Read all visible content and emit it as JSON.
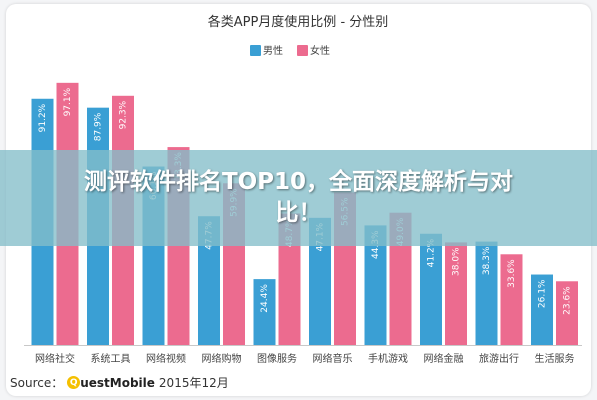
{
  "banner": {
    "title": "测评软件排名TOP10，全面深度解析与对比！"
  },
  "source": {
    "label": "Source：",
    "logo_text": "uestMobile",
    "date": "2015年12月"
  },
  "chart_data": {
    "type": "bar",
    "title": "各类APP月度使用比例 - 分性别",
    "legend_position": "top-center",
    "categories": [
      "网络社交",
      "系统工具",
      "网络视频",
      "网络购物",
      "图像服务",
      "网络音乐",
      "手机游戏",
      "网络金融",
      "旅游出行",
      "生活服务"
    ],
    "series": [
      {
        "name": "男性",
        "color": "#3a9fd4",
        "values": [
          91.2,
          87.9,
          66.1,
          47.7,
          24.4,
          47.1,
          44.3,
          41.2,
          38.3,
          26.1
        ]
      },
      {
        "name": "女性",
        "color": "#ec6b8f",
        "values": [
          97.1,
          92.3,
          73.3,
          59.9,
          48.7,
          56.5,
          49.0,
          38.0,
          33.6,
          23.6
        ]
      }
    ],
    "data_labels": {
      "男性": [
        "91.2%",
        "87.9%",
        "66.1%",
        "47.7%",
        "24.4%",
        "47.1%",
        "44.3%",
        "41.2%",
        "38.3%",
        "26.1%"
      ],
      "女性": [
        "97.1%",
        "92.3%",
        "73.3%",
        "59.9%",
        "48.7%",
        "56.5%",
        "49.0%",
        "38.0%",
        "33.6%",
        "23.6%"
      ]
    },
    "ylim": [
      0,
      100
    ],
    "grid": false
  }
}
